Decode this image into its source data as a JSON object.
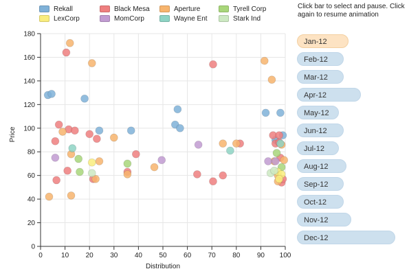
{
  "info_text": "Click bar to select and pause. Click again to resume animation",
  "legend": [
    {
      "name": "Rekall",
      "color": "#7fb1d8"
    },
    {
      "name": "Black Mesa",
      "color": "#ee7f7f"
    },
    {
      "name": "Aperture",
      "color": "#f7b46d"
    },
    {
      "name": "Tyrell Corp",
      "color": "#a8d67a"
    },
    {
      "name": "LexCorp",
      "color": "#f9ed7e"
    },
    {
      "name": "MomCorp",
      "color": "#c19bd1"
    },
    {
      "name": "Wayne Ent",
      "color": "#8ed3c4"
    },
    {
      "name": "Stark Ind",
      "color": "#cde9c2"
    }
  ],
  "months": [
    {
      "label": "Jan-12",
      "value": 21,
      "active": true
    },
    {
      "label": "Feb-12",
      "value": 19,
      "active": false
    },
    {
      "label": "Mar-12",
      "value": 19,
      "active": false
    },
    {
      "label": "Apr-12",
      "value": 26,
      "active": false
    },
    {
      "label": "May-12",
      "value": 17,
      "active": false
    },
    {
      "label": "Jun-12",
      "value": 19,
      "active": false
    },
    {
      "label": "Jul-12",
      "value": 17,
      "active": false
    },
    {
      "label": "Aug-12",
      "value": 20,
      "active": false
    },
    {
      "label": "Sep-12",
      "value": 19,
      "active": false
    },
    {
      "label": "Oct-12",
      "value": 19,
      "active": false
    },
    {
      "label": "Nov-12",
      "value": 22,
      "active": false
    },
    {
      "label": "Dec-12",
      "value": 40,
      "active": false
    }
  ],
  "chart_data": {
    "type": "scatter",
    "xlabel": "Distribution",
    "ylabel": "Price",
    "xlim": [
      0,
      100
    ],
    "ylim": [
      0,
      180
    ],
    "xticks": [
      "0",
      "10",
      "20",
      "30",
      "40",
      "50",
      "60",
      "70",
      "80",
      "90",
      "100"
    ],
    "yticks": [
      "0",
      "20",
      "40",
      "60",
      "80",
      "100",
      "120",
      "140",
      "160",
      "180"
    ],
    "grid": true,
    "series": [
      {
        "name": "Rekall",
        "color": "#7fb1d8",
        "points": [
          [
            3,
            128
          ],
          [
            4.5,
            129
          ],
          [
            18,
            125
          ],
          [
            24,
            98
          ],
          [
            37,
            98
          ],
          [
            55,
            103
          ],
          [
            56,
            116
          ],
          [
            57,
            100
          ],
          [
            92,
            113
          ],
          [
            96,
            90
          ],
          [
            98,
            113
          ],
          [
            99,
            94
          ]
        ]
      },
      {
        "name": "Black Mesa",
        "color": "#ee7f7f",
        "points": [
          [
            6,
            89
          ],
          [
            6.5,
            56
          ],
          [
            7.5,
            103
          ],
          [
            10.5,
            164
          ],
          [
            11,
            64
          ],
          [
            11.5,
            99
          ],
          [
            14,
            98
          ],
          [
            20,
            95
          ],
          [
            21.5,
            57
          ],
          [
            23,
            91
          ],
          [
            35.5,
            63
          ],
          [
            39,
            78
          ],
          [
            64,
            61
          ],
          [
            70.5,
            154
          ],
          [
            70.5,
            55
          ],
          [
            74.5,
            60
          ],
          [
            81.5,
            87
          ],
          [
            95,
            94
          ],
          [
            96,
            87
          ],
          [
            97.5,
            94
          ],
          [
            98,
            75
          ],
          [
            98.5,
            54
          ],
          [
            99,
            57
          ],
          [
            97.5,
            88
          ]
        ]
      },
      {
        "name": "Aperture",
        "color": "#f7b46d",
        "points": [
          [
            3.5,
            42
          ],
          [
            9,
            97
          ],
          [
            12,
            172
          ],
          [
            12.5,
            78
          ],
          [
            12.5,
            43
          ],
          [
            21,
            155
          ],
          [
            22.5,
            57
          ],
          [
            24,
            72
          ],
          [
            30,
            92
          ],
          [
            35.5,
            61
          ],
          [
            46.5,
            67
          ],
          [
            74.5,
            87
          ],
          [
            80,
            87
          ],
          [
            91.5,
            157
          ],
          [
            94.5,
            141
          ],
          [
            95.5,
            72
          ],
          [
            97,
            60
          ],
          [
            97,
            55
          ],
          [
            98.5,
            86
          ],
          [
            99.5,
            73
          ]
        ]
      },
      {
        "name": "Tyrell Corp",
        "color": "#a8d67a",
        "points": [
          [
            15.5,
            74
          ],
          [
            16,
            63
          ],
          [
            35.5,
            70
          ],
          [
            96.5,
            79
          ],
          [
            98.5,
            67
          ]
        ]
      },
      {
        "name": "LexCorp",
        "color": "#f9ed7e",
        "points": [
          [
            21,
            71
          ],
          [
            97,
            63
          ],
          [
            98.5,
            61
          ],
          [
            97.5,
            57
          ]
        ]
      },
      {
        "name": "MomCorp",
        "color": "#c19bd1",
        "points": [
          [
            6,
            75
          ],
          [
            49.5,
            73
          ],
          [
            64.5,
            86
          ],
          [
            93,
            72
          ],
          [
            96,
            72
          ]
        ]
      },
      {
        "name": "Wayne Ent",
        "color": "#8ed3c4",
        "points": [
          [
            13,
            83
          ],
          [
            77.5,
            81
          ],
          [
            98,
            87
          ]
        ]
      },
      {
        "name": "Stark Ind",
        "color": "#cde9c2",
        "points": [
          [
            21,
            62
          ],
          [
            94,
            62
          ],
          [
            95.5,
            64
          ]
        ]
      }
    ]
  }
}
